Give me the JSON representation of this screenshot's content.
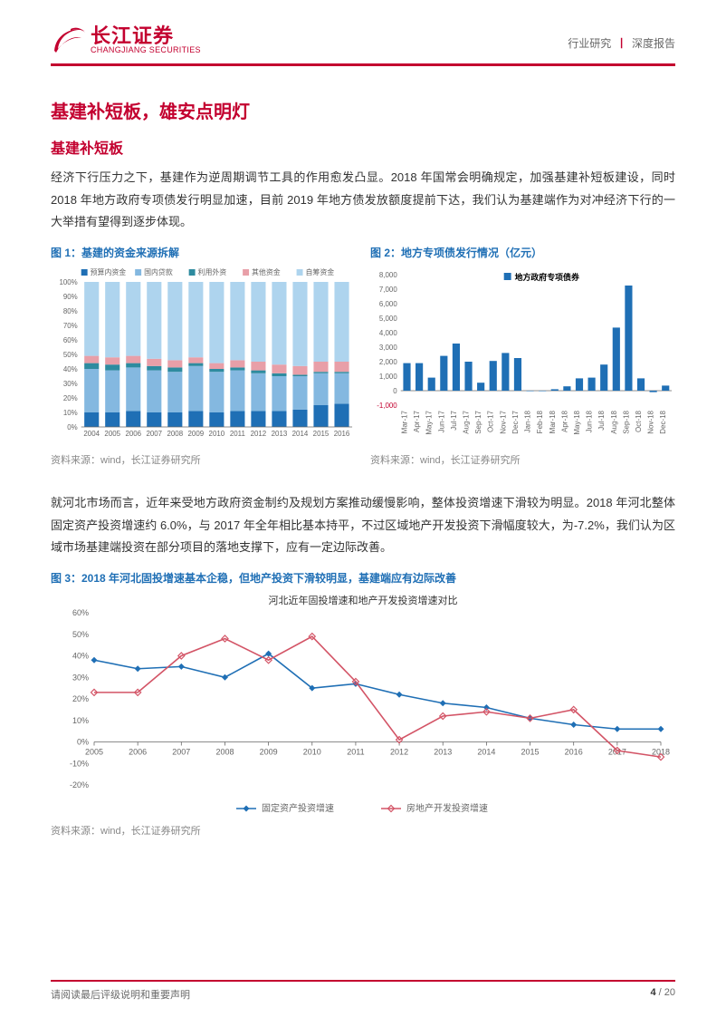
{
  "header": {
    "logo_cn": "长江证券",
    "logo_en": "CHANGJIANG SECURITIES",
    "right_a": "行业研究",
    "right_b": "深度报告"
  },
  "section": {
    "h1": "基建补短板，雄安点明灯",
    "h2a": "基建补短板",
    "para1": "经济下行压力之下，基建作为逆周期调节工具的作用愈发凸显。2018 年国常会明确规定，加强基建补短板建设，同时 2018 年地方政府专项债发行明显加速，目前 2019 年地方债发放额度提前下达，我们认为基建端作为对冲经济下行的一大举措有望得到逐步体现。",
    "para2": "就河北市场而言，近年来受地方政府资金制约及规划方案推动缓慢影响，整体投资增速下滑较为明显。2018 年河北整体固定资产投资增速约 6.0%，与 2017 年全年相比基本持平，不过区域地产开发投资下滑幅度较大，为-7.2%，我们认为区域市场基建端投资在部分项目的落地支撑下，应有一定边际改善。"
  },
  "fig1": {
    "title": "图 1：基建的资金来源拆解",
    "source": "资料来源：wind，长江证券研究所",
    "type": "stacked-bar",
    "legend": [
      "预算内资金",
      "国内贷款",
      "利用外资",
      "其他资金",
      "自筹资金"
    ],
    "legend_colors": [
      "#1f6fb5",
      "#84b8e0",
      "#2e8b9f",
      "#e89fa8",
      "#aed4ee"
    ],
    "categories": [
      "2004",
      "2005",
      "2006",
      "2007",
      "2008",
      "2009",
      "2010",
      "2011",
      "2012",
      "2013",
      "2014",
      "2015",
      "2016"
    ],
    "series_pct": {
      "budget": [
        10,
        10,
        11,
        10,
        10,
        11,
        10,
        11,
        11,
        11,
        12,
        15,
        16
      ],
      "domestic_loan": [
        30,
        29,
        30,
        29,
        28,
        31,
        28,
        28,
        26,
        24,
        23,
        22,
        21
      ],
      "foreign": [
        4,
        4,
        3,
        3,
        3,
        2,
        2,
        2,
        2,
        2,
        1,
        1,
        1
      ],
      "other": [
        5,
        5,
        5,
        5,
        5,
        4,
        4,
        5,
        6,
        6,
        6,
        7,
        7
      ],
      "self_raised": [
        51,
        52,
        51,
        53,
        54,
        52,
        56,
        54,
        55,
        57,
        58,
        55,
        55
      ]
    },
    "ytick_step": 10,
    "ylim": [
      0,
      100
    ],
    "colors": {
      "budget": "#1f6fb5",
      "domestic_loan": "#84b8e0",
      "foreign": "#2e8b9f",
      "other": "#e89fa8",
      "self_raised": "#aed4ee"
    },
    "axis_color": "#666666",
    "font_size": 8
  },
  "fig2": {
    "title": "图 2：地方专项债发行情况（亿元）",
    "source": "资料来源：wind，长江证券研究所",
    "type": "bar",
    "legend_title": "地方政府专项债券",
    "categories": [
      "Mar-17",
      "Apr-17",
      "May-17",
      "Jun-17",
      "Jul-17",
      "Aug-17",
      "Sep-17",
      "Oct-17",
      "Nov-17",
      "Dec-17",
      "Jan-18",
      "Feb-18",
      "Mar-18",
      "Apr-18",
      "May-18",
      "Jun-18",
      "Jul-18",
      "Aug-18",
      "Sep-18",
      "Oct-18",
      "Nov-18",
      "Dec-18"
    ],
    "values": [
      1900,
      1900,
      900,
      2400,
      3250,
      2000,
      550,
      2050,
      2600,
      2250,
      0,
      0,
      100,
      300,
      850,
      900,
      1800,
      4350,
      7250,
      850,
      -100,
      350
    ],
    "ylim": [
      -1000,
      8000
    ],
    "ytick_step": 1000,
    "bar_color": "#1f6fb5",
    "neg_label_color": "#c3002f",
    "axis_color": "#666666",
    "font_size": 8
  },
  "fig3": {
    "title": "图 3：2018 年河北固投增速基本企稳，但地产投资下滑较明显，基建端应有边际改善",
    "source": "资料来源：wind，长江证券研究所",
    "chart_title": "河北近年固投增速和地产开发投资增速对比",
    "type": "line",
    "legend": [
      "固定资产投资增速",
      "房地产开发投资增速"
    ],
    "legend_colors": [
      "#1f6fb5",
      "#d35466"
    ],
    "categories": [
      "2005",
      "2006",
      "2007",
      "2008",
      "2009",
      "2010",
      "2011",
      "2012",
      "2013",
      "2014",
      "2015",
      "2016",
      "2017",
      "2018"
    ],
    "series": {
      "fixed_asset": [
        38,
        34,
        35,
        30,
        41,
        25,
        27,
        22,
        18,
        16,
        11,
        8,
        6,
        6
      ],
      "real_estate": [
        23,
        23,
        40,
        48,
        38,
        49,
        28,
        1,
        12,
        14,
        11,
        15,
        -4,
        -7
      ]
    },
    "ylim": [
      -20,
      60
    ],
    "ytick_step": 10,
    "colors": {
      "fixed_asset": "#1f6fb5",
      "real_estate": "#d35466"
    },
    "axis_color": "#666666",
    "grid_color": "#cccccc",
    "font_size": 9
  },
  "footer": {
    "note": "请阅读最后评级说明和重要声明",
    "page_current": "4",
    "page_total": "20"
  }
}
